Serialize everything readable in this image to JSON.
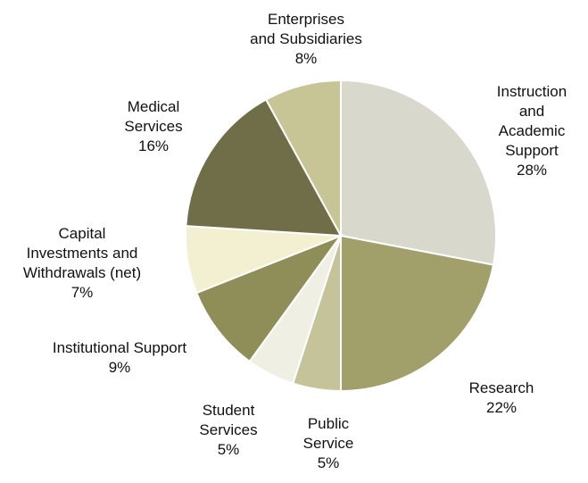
{
  "chart_data": {
    "type": "pie",
    "title": "",
    "slices": [
      {
        "lines": [
          "Instruction",
          "and",
          "Academic",
          "Support"
        ],
        "percent_label": "28%",
        "value": 28,
        "color": "#d9d8cd"
      },
      {
        "lines": [
          "Research"
        ],
        "percent_label": "22%",
        "value": 22,
        "color": "#a1a06a"
      },
      {
        "lines": [
          "Public",
          "Service"
        ],
        "percent_label": "5%",
        "value": 5,
        "color": "#c4c39a"
      },
      {
        "lines": [
          "Student",
          "Services"
        ],
        "percent_label": "5%",
        "value": 5,
        "color": "#f0efe3"
      },
      {
        "lines": [
          "Institutional Support"
        ],
        "percent_label": "9%",
        "value": 9,
        "color": "#8f8e58"
      },
      {
        "lines": [
          "Capital",
          "Investments and",
          "Withdrawals (net)"
        ],
        "percent_label": "7%",
        "value": 7,
        "color": "#f3f0d2"
      },
      {
        "lines": [
          "Medical",
          "Services"
        ],
        "percent_label": "16%",
        "value": 16,
        "color": "#6f6e49"
      },
      {
        "lines": [
          "Enterprises",
          "and Subsidiaries"
        ],
        "percent_label": "8%",
        "value": 8,
        "color": "#c7c496"
      }
    ]
  }
}
